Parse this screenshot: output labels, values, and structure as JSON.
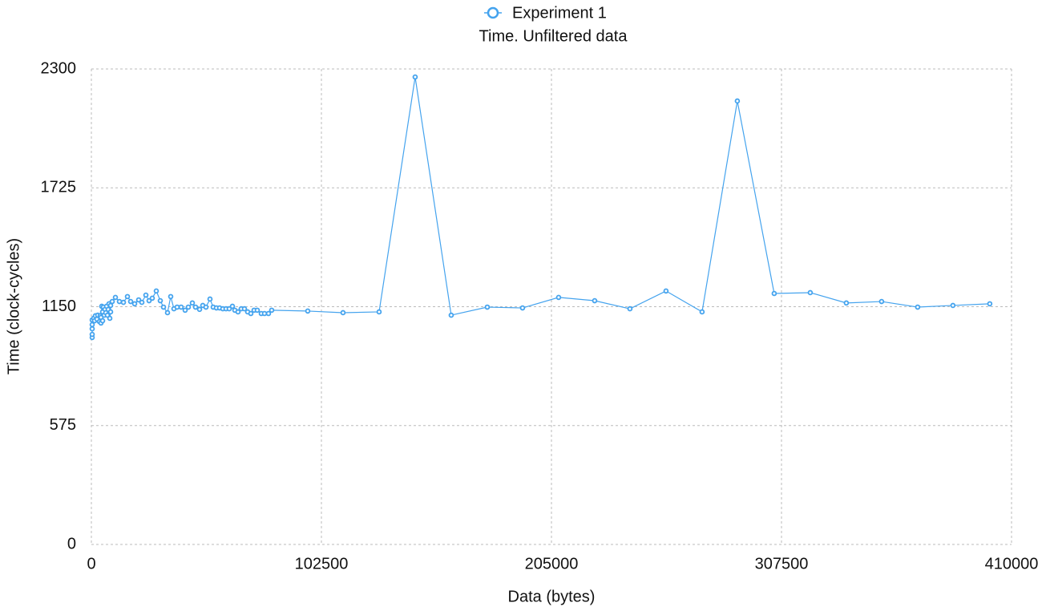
{
  "chart_data": {
    "type": "line",
    "title": "Time. Unfiltered data",
    "xlabel": "Data (bytes)",
    "ylabel": "Time (clock-cycles)",
    "x": [
      357,
      357,
      357,
      357,
      357,
      1071,
      1428,
      1786,
      2500,
      2857,
      3571,
      3928,
      4285,
      4285,
      4642,
      5000,
      5000,
      5357,
      5714,
      6071,
      6428,
      6785,
      7142,
      7499,
      7856,
      8213,
      8570,
      8570,
      9285,
      10713,
      12499,
      14284,
      16070,
      17498,
      19283,
      21069,
      22497,
      24283,
      25711,
      27140,
      28925,
      30710,
      32139,
      33925,
      35353,
      36781,
      38210,
      39995,
      41781,
      43209,
      44995,
      46423,
      48209,
      49637,
      51065,
      52851,
      54279,
      55708,
      57136,
      58564,
      59993,
      61421,
      62850,
      63921,
      65349,
      66778,
      68206,
      69635,
      71063,
      72491,
      73920,
      75705,
      77134,
      78919,
      80348,
      96417,
      112129,
      128199,
      144268,
      160338,
      176407,
      192120,
      208189,
      224259,
      239971,
      256041,
      272110,
      287823,
      304249,
      320319,
      336389,
      352101,
      368171,
      383883,
      400310
    ],
    "series": [
      {
        "name": "Experiment 1",
        "color": "#44a3ee",
        "values": [
          1001,
          1016,
          1043,
          1063,
          1086,
          1094,
          1082,
          1106,
          1090,
          1109,
          1078,
          1106,
          1098,
          1071,
          1152,
          1125,
          1082,
          1148,
          1109,
          1137,
          1121,
          1152,
          1109,
          1137,
          1164,
          1094,
          1125,
          1156,
          1175,
          1195,
          1175,
          1171,
          1199,
          1175,
          1164,
          1183,
          1171,
          1206,
          1179,
          1191,
          1226,
          1179,
          1148,
          1121,
          1199,
          1140,
          1148,
          1148,
          1133,
          1148,
          1168,
          1148,
          1137,
          1156,
          1148,
          1187,
          1148,
          1144,
          1144,
          1140,
          1140,
          1140,
          1152,
          1133,
          1125,
          1140,
          1140,
          1125,
          1117,
          1133,
          1133,
          1117,
          1117,
          1117,
          1133,
          1129,
          1121,
          1125,
          2261,
          1109,
          1148,
          1144,
          1195,
          1179,
          1140,
          1226,
          1125,
          2145,
          1214,
          1218,
          1168,
          1175,
          1148,
          1156,
          1164
        ]
      }
    ],
    "xlim": [
      0,
      410000
    ],
    "xticks": [
      0,
      102500,
      205000,
      307500,
      410000
    ],
    "ylim": [
      0,
      2300
    ],
    "yticks": [
      0,
      575,
      1150,
      1725,
      2300
    ],
    "grid": true,
    "legend": "top"
  }
}
